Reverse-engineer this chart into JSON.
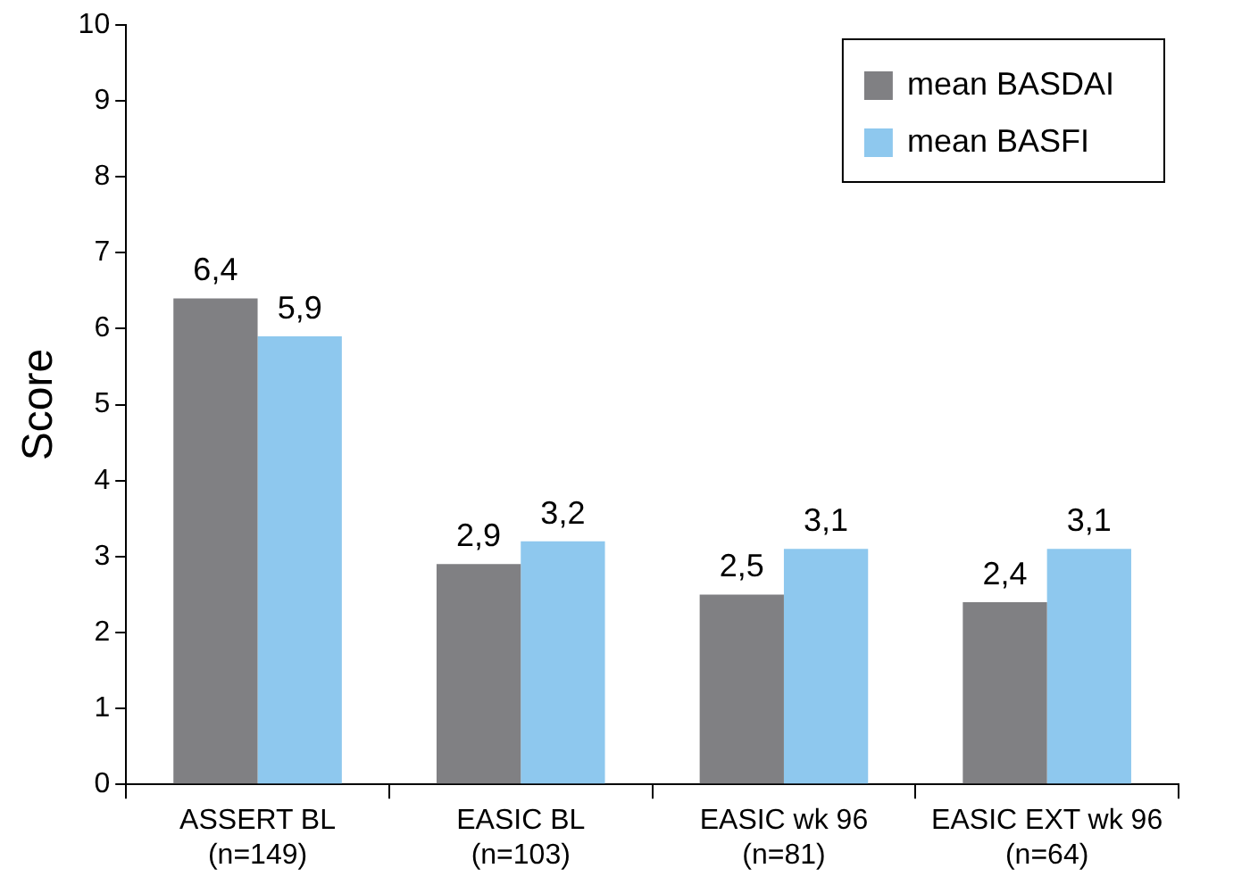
{
  "chart_data": {
    "type": "bar",
    "ylabel": "Score",
    "categories": [
      "ASSERT BL (n=149)",
      "EASIC BL (n=103)",
      "EASIC wk 96 (n=81)",
      "EASIC EXT wk 96 (n=64)"
    ],
    "series": [
      {
        "name": "mean BASDAI",
        "color": "#808083",
        "values": [
          6.4,
          2.9,
          2.5,
          2.4
        ],
        "value_labels": [
          "6,4",
          "2,9",
          "2,5",
          "2,4"
        ]
      },
      {
        "name": "mean BASFI",
        "color": "#8ec8ee",
        "values": [
          5.9,
          3.2,
          3.1,
          3.1
        ],
        "value_labels": [
          "5,9",
          "3,2",
          "3,1",
          "3,1"
        ]
      }
    ],
    "ylim": [
      0,
      10
    ],
    "yticks": [
      0,
      1,
      2,
      3,
      4,
      5,
      6,
      7,
      8,
      9,
      10
    ],
    "grid": false,
    "legend": "top right"
  }
}
